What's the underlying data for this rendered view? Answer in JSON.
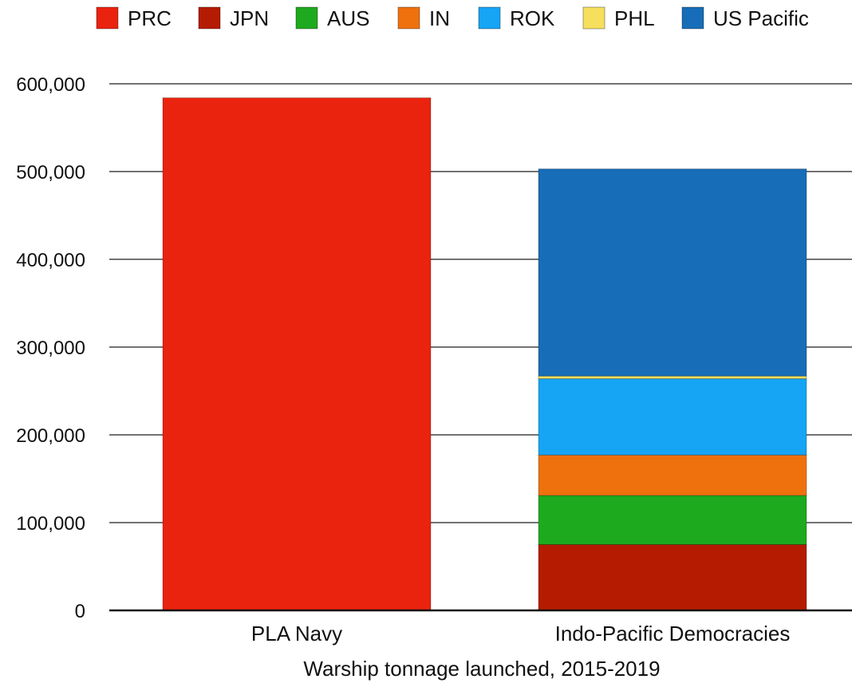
{
  "chart_data": {
    "type": "bar",
    "stacked": true,
    "categories": [
      "PLA Navy",
      "Indo-Pacific Democracies"
    ],
    "series": [
      {
        "name": "PRC",
        "color": "#ea230e",
        "values": [
          584000,
          0
        ]
      },
      {
        "name": "JPN",
        "color": "#b51b00",
        "values": [
          0,
          75000
        ]
      },
      {
        "name": "AUS",
        "color": "#1eaa1e",
        "values": [
          0,
          56000
        ]
      },
      {
        "name": "IN",
        "color": "#ef710e",
        "values": [
          0,
          46000
        ]
      },
      {
        "name": "ROK",
        "color": "#16a4f5",
        "values": [
          0,
          87000
        ]
      },
      {
        "name": "PHL",
        "color": "#f6df5d",
        "values": [
          0,
          3000
        ]
      },
      {
        "name": "US Pacific",
        "color": "#176db8",
        "values": [
          0,
          236000
        ]
      }
    ],
    "xlabel": "Warship tonnage launched, 2015-2019",
    "ylabel": "",
    "ylim": [
      0,
      600000
    ],
    "yticks": [
      0,
      100000,
      200000,
      300000,
      400000,
      500000,
      600000
    ],
    "ytick_labels": [
      "0",
      "100,000",
      "200,000",
      "300,000",
      "400,000",
      "500,000",
      "600,000"
    ],
    "grid": true,
    "legend": "top"
  }
}
